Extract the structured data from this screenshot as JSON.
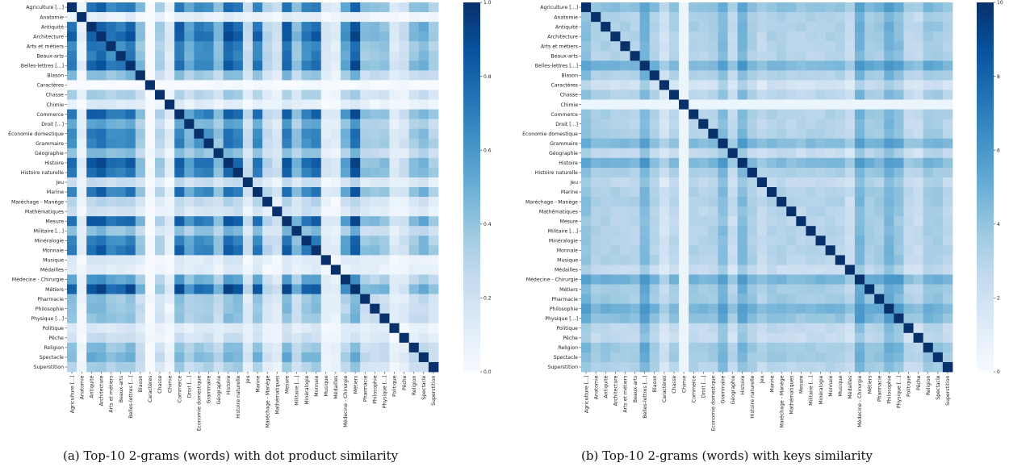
{
  "captions": {
    "a": "(a) Top-10 2-grams (words) with dot product similarity",
    "b": "(b) Top-10 2-grams (words) with keys similarity"
  },
  "chart_data": [
    {
      "type": "heatmap",
      "id": "a",
      "labels": [
        "Agriculture [...]",
        "Anatomie",
        "Antiquité",
        "Architecture",
        "Arts et métiers",
        "Beaux-arts",
        "Belles-lettres [...]",
        "Blason",
        "Caractères",
        "Chasse",
        "Chimie",
        "Commerce",
        "Droit [...]",
        "Économie domestique",
        "Grammaire",
        "Géographie",
        "Histoire",
        "Histoire naturelle",
        "Jeu",
        "Marine",
        "Maréchage - Manège",
        "Mathématiques",
        "Mesure",
        "Militaire [...]",
        "Minéralogie",
        "Monnaie",
        "Musique",
        "Médailles",
        "Médecine - Chirurgie",
        "Métiers",
        "Pharmacie",
        "Philosophie",
        "Physique [...]",
        "Politique",
        "Pêche",
        "Religion",
        "Spectacle",
        "Superstition"
      ],
      "colorbar": {
        "min": 0.0,
        "max": 1.0,
        "ticks": [
          "0.0",
          "0.2",
          "0.4",
          "0.6",
          "0.8",
          "1.0"
        ],
        "tick_values": [
          0.0,
          0.2,
          0.4,
          0.6,
          0.8,
          1.0
        ]
      },
      "colormap": [
        "#f7fbff",
        "#deebf7",
        "#c6dbef",
        "#9ecae1",
        "#6baed6",
        "#4292c6",
        "#2171b5",
        "#08519c",
        "#08306b"
      ],
      "hub_strength": {
        "Anatomie": 0.1,
        "Caractères": 0.0,
        "Chimie": 0.12,
        "Chasse": 0.35,
        "Musique": 0.15,
        "Médailles": 0.12,
        "Jeu": 0.25,
        "Maréchage - Manège": 0.3,
        "Mathématiques": 0.22,
        "Politique": 0.15,
        "Pêche": 0.22,
        "Géographie": 0.45,
        "Blason": 0.45,
        "Pharmacie": 0.42,
        "Philosophie": 0.42,
        "Physique [...]": 0.42,
        "Religion": 0.42,
        "Spectacle": 0.5,
        "Superstition": 0.35,
        "Militaire [...]": 0.45,
        "Droit [...]": 0.55,
        "Agriculture [...]": 0.75,
        "Antiquité": 0.8,
        "Architecture": 0.85,
        "Arts et métiers": 0.72,
        "Beaux-arts": 0.72,
        "Belles-lettres [...]": 0.8,
        "Commerce": 0.8,
        "Économie domestique": 0.7,
        "Grammaire": 0.7,
        "Histoire": 0.82,
        "Histoire naturelle": 0.78,
        "Marine": 0.76,
        "Mesure": 0.82,
        "Minéralogie": 0.72,
        "Monnaie": 0.78,
        "Médecine - Chirurgie": 0.58,
        "Métiers": 0.88
      },
      "mode": "product",
      "scale": 1.25,
      "offset": 0.0
    },
    {
      "type": "heatmap",
      "id": "b",
      "labels": [
        "Agriculture [...]",
        "Anatomie",
        "Antiquité",
        "Architecture",
        "Arts et métiers",
        "Beaux-arts",
        "Belles-lettres [...]",
        "Blason",
        "Caractères",
        "Chasse",
        "Chimie",
        "Commerce",
        "Droit [...]",
        "Economie domestique",
        "Grammaire",
        "Géographie",
        "Histoire",
        "Histoire naturelle",
        "Jeu",
        "Marine",
        "Maréchage - Manège",
        "Mathématiques",
        "Mesure",
        "Militaire [...]",
        "Minéralogie",
        "Monnaie",
        "Musique",
        "Médailles",
        "Médecine - Chirurgie",
        "Métiers",
        "Pharmacie",
        "Philosophie",
        "Physique [...]",
        "Politique",
        "Pêche",
        "Religion",
        "Spectacle",
        "Superstition"
      ],
      "colorbar": {
        "min": 0,
        "max": 10,
        "ticks": [
          "0",
          "2",
          "4",
          "6",
          "8",
          "10"
        ],
        "tick_values": [
          0,
          2,
          4,
          6,
          8,
          10
        ]
      },
      "colormap": [
        "#f7fbff",
        "#deebf7",
        "#c6dbef",
        "#9ecae1",
        "#6baed6",
        "#4292c6",
        "#2171b5",
        "#08519c",
        "#08306b"
      ],
      "hub_strength": {
        "Agriculture [...]": 0.45,
        "Anatomie": 0.28,
        "Antiquité": 0.3,
        "Architecture": 0.28,
        "Arts et métiers": 0.28,
        "Beaux-arts": 0.25,
        "Belles-lettres [...]": 0.55,
        "Blason": 0.28,
        "Caractères": 0.05,
        "Chasse": 0.25,
        "Chimie": 0.0,
        "Commerce": 0.28,
        "Droit [...]": 0.25,
        "Economie domestique": 0.28,
        "Grammaire": 0.5,
        "Géographie": 0.15,
        "Histoire": 0.5,
        "Histoire naturelle": 0.3,
        "Jeu": 0.18,
        "Marine": 0.28,
        "Maréchage - Manège": 0.28,
        "Mathématiques": 0.25,
        "Mesure": 0.22,
        "Militaire [...]": 0.25,
        "Minéralogie": 0.25,
        "Monnaie": 0.25,
        "Musique": 0.25,
        "Médailles": 0.12,
        "Médecine - Chirurgie": 0.55,
        "Métiers": 0.35,
        "Pharmacie": 0.35,
        "Philosophie": 0.55,
        "Physique [...]": 0.45,
        "Politique": 0.18,
        "Pêche": 0.15,
        "Religion": 0.35,
        "Spectacle": 0.35,
        "Superstition": 0.25
      },
      "mode": "sum",
      "scale": 0.55,
      "offset": 0.02
    }
  ]
}
